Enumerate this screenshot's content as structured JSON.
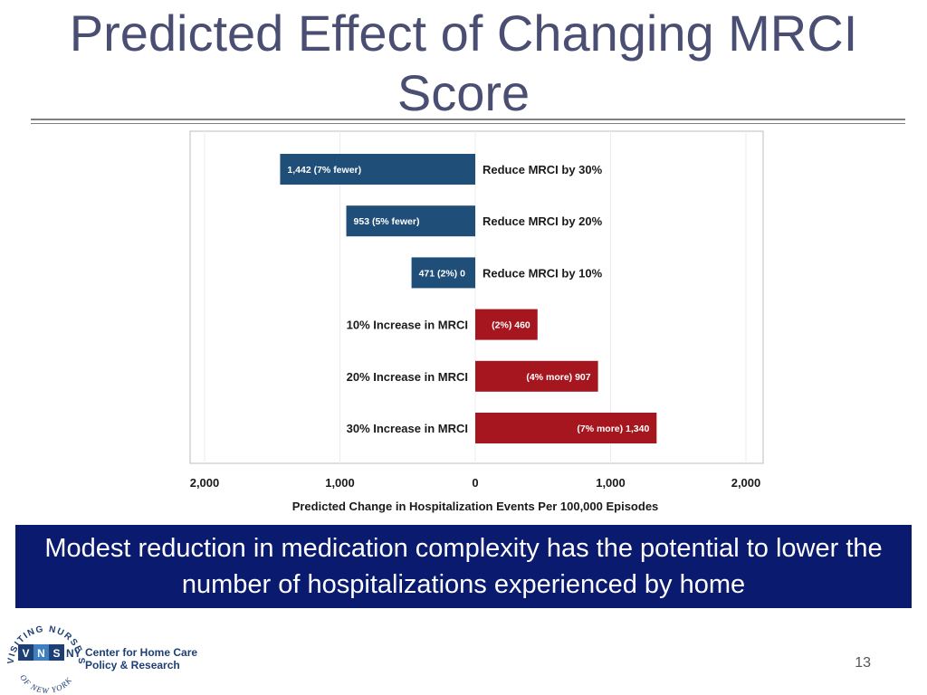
{
  "slide": {
    "title": "Predicted Effect of Changing MRCI Score",
    "callout": "Modest reduction in medication complexity has the potential to lower the number of hospitalizations experienced by home",
    "page_number": "13"
  },
  "logo": {
    "ring_text_top": "VISITING NURSE SERVICE",
    "ring_text_bottom": "OF NEW YORK",
    "badge": [
      "V",
      "N",
      "S",
      "NY"
    ],
    "org_line1": "Center for Home Care",
    "org_line2": "Policy & Research",
    "colors": {
      "dark": "#1d3f73",
      "light": "#3d7fbf"
    }
  },
  "chart_data": {
    "type": "bar",
    "orientation": "horizontal",
    "xlabel": "Predicted Change in Hospitalization Events Per 100,000 Episodes",
    "xlim": [
      -2000,
      2000
    ],
    "xtick_values": [
      -2000,
      -1000,
      0,
      1000,
      2000
    ],
    "xtick_labels": [
      "2,000",
      "1,000",
      "0",
      "1,000",
      "2,000"
    ],
    "grid": true,
    "bars": [
      {
        "category": "Reduce MRCI by 30%",
        "value": -1442,
        "label": "1,442 (7% fewer)",
        "color": "#1f4e79"
      },
      {
        "category": "Reduce MRCI by 20%",
        "value": -953,
        "label": "953 (5% fewer)",
        "color": "#1f4e79"
      },
      {
        "category": "Reduce MRCI by 10%",
        "value": -471,
        "label": "471 (2%)  0",
        "color": "#1f4e79"
      },
      {
        "category": "10% Increase in MRCI",
        "value": 460,
        "label": "(2%) 460",
        "color": "#a6161e"
      },
      {
        "category": "20% Increase in MRCI",
        "value": 907,
        "label": "(4% more) 907",
        "color": "#a6161e"
      },
      {
        "category": "30% Increase in MRCI",
        "value": 1340,
        "label": "(7% more) 1,340",
        "color": "#a6161e"
      }
    ]
  }
}
